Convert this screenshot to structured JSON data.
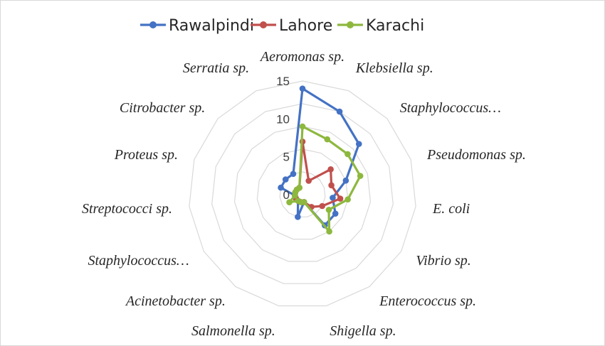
{
  "chart_data": {
    "type": "radar",
    "categories": [
      "Aeromonas sp.",
      "Klebsiella sp.",
      "Staphylococcus…",
      "Pseudomonas sp.",
      "E. coli",
      "Vibrio sp.",
      "Enterococcus sp.",
      "Shigella sp.",
      "Salmonella sp.",
      "Acinetobacter sp.",
      "Staphylococcus…",
      "Streptococci sp.",
      "Proteus sp.",
      "Citrobacter sp.",
      "Serratia sp."
    ],
    "series": [
      {
        "name": "Rawalpindi",
        "color": "#4472C4",
        "values": [
          14,
          12,
          10,
          6,
          4,
          5,
          5,
          1,
          3,
          1,
          1,
          1,
          3,
          3,
          3
        ]
      },
      {
        "name": "Lahore",
        "color": "#C0504D",
        "values": [
          7,
          2,
          5,
          4,
          5,
          3,
          2,
          1,
          1,
          1,
          1,
          1,
          1,
          1,
          1
        ]
      },
      {
        "name": "Karachi",
        "color": "#8DB83E",
        "values": [
          9,
          8,
          8,
          8,
          6,
          4,
          6,
          1,
          1,
          1,
          2,
          1,
          1,
          1,
          1
        ]
      }
    ],
    "rlim": [
      0,
      15
    ],
    "ticks": [
      0,
      5,
      10,
      15
    ],
    "legend_position": "top"
  }
}
